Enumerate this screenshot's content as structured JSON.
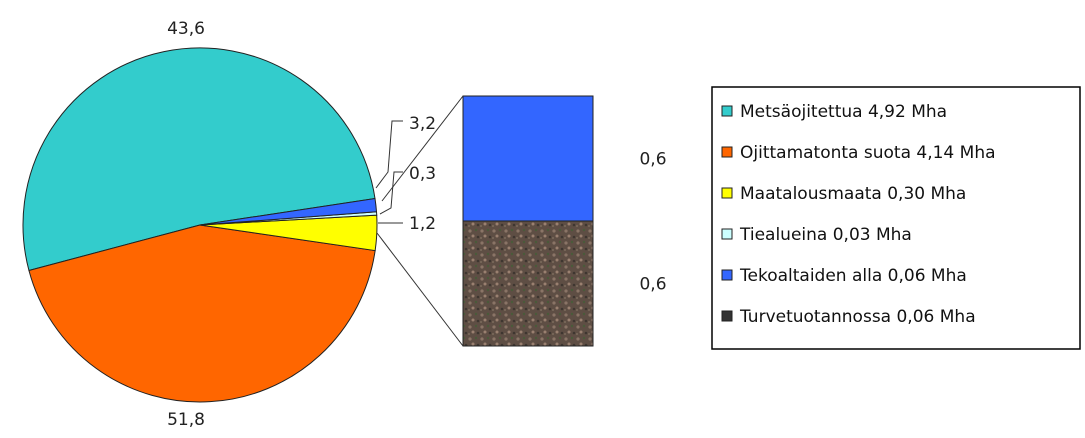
{
  "chart_data": {
    "type": "pie",
    "main_pie": {
      "slices": [
        {
          "label": "51,8",
          "value": 51.8,
          "color": "#33cccc"
        },
        {
          "label": "43,6",
          "value": 43.6,
          "color": "#ff6600"
        },
        {
          "label": "3,2",
          "value": 3.2,
          "color": "#ffff00"
        },
        {
          "label": "0,3",
          "value": 0.3,
          "color": "#ccffff"
        },
        {
          "label": "1,2",
          "value": 1.2,
          "color": "#3366ff"
        }
      ]
    },
    "secondary_bar": {
      "segments": [
        {
          "label": "0,6",
          "value": 0.6,
          "color": "#3366ff"
        },
        {
          "label": "0,6",
          "value": 0.6,
          "color": "#6b5a4e"
        }
      ]
    },
    "legend": {
      "placement": "right",
      "entries": [
        {
          "text": "Metsäojitettua 4,92 Mha",
          "color": "#33cccc"
        },
        {
          "text": "Ojittamatonta suota 4,14 Mha",
          "color": "#ff6600"
        },
        {
          "text": "Maatalousmaata 0,30 Mha",
          "color": "#ffff00"
        },
        {
          "text": "Tiealueina 0,03 Mha",
          "color": "#ccffff"
        },
        {
          "text": "Tekoaltaiden alla 0,06 Mha",
          "color": "#3366ff"
        },
        {
          "text": "Turvetuotannossa 0,06 Mha",
          "color": "#333333"
        }
      ]
    }
  }
}
